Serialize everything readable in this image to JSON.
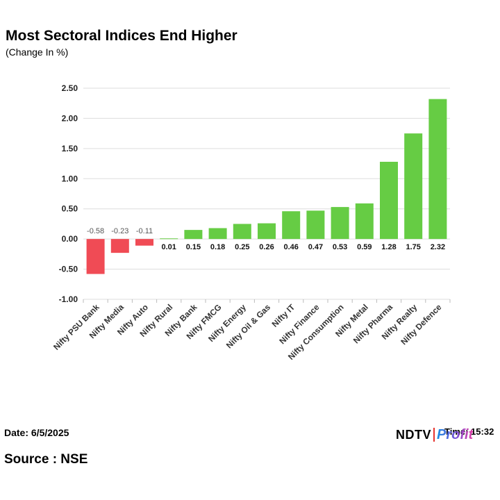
{
  "header": {
    "title": "Most Sectoral Indices End Higher",
    "subtitle": "(Change In %)"
  },
  "footer": {
    "date": "Date: 6/5/2025",
    "time": "Time: 15:32",
    "source": "Source : NSE",
    "logo_ndtv": "NDTV",
    "logo_profit": "Profit"
  },
  "colors": {
    "positive": "#66cc44",
    "negative": "#f04b55",
    "grid": "#dddddd",
    "axis": "#bbbbbb"
  },
  "chart_data": {
    "type": "bar",
    "title": "Most Sectoral Indices End Higher",
    "subtitle": "(Change In %)",
    "categories": [
      "Nifty PSU Bank",
      "Nifty Media",
      "Nifty Auto",
      "Nifty Rural",
      "Nifty Bank",
      "Nifty FMCG",
      "Nifty Energy",
      "Nifty Oil & Gas",
      "Nifty IT",
      "Nifty Finance",
      "Nifty Consumption",
      "Nifty Metal",
      "Nifty Pharma",
      "Nifty Realty",
      "Nifty Defence"
    ],
    "values": [
      -0.58,
      -0.23,
      -0.11,
      0.01,
      0.15,
      0.18,
      0.25,
      0.26,
      0.46,
      0.47,
      0.53,
      0.59,
      1.28,
      1.75,
      2.32
    ],
    "data_labels": [
      "-0.58",
      "-0.23",
      "-0.11",
      "0.01",
      "0.15",
      "0.18",
      "0.25",
      "0.26",
      "0.46",
      "0.47",
      "0.53",
      "0.59",
      "1.28",
      "1.75",
      "2.32"
    ],
    "yticks": [
      "2.50",
      "2.00",
      "1.50",
      "1.00",
      "0.50",
      "0.00",
      "-0.50",
      "-1.00"
    ],
    "ylim": [
      -1.0,
      2.5
    ],
    "grid": true,
    "legend": "none"
  }
}
